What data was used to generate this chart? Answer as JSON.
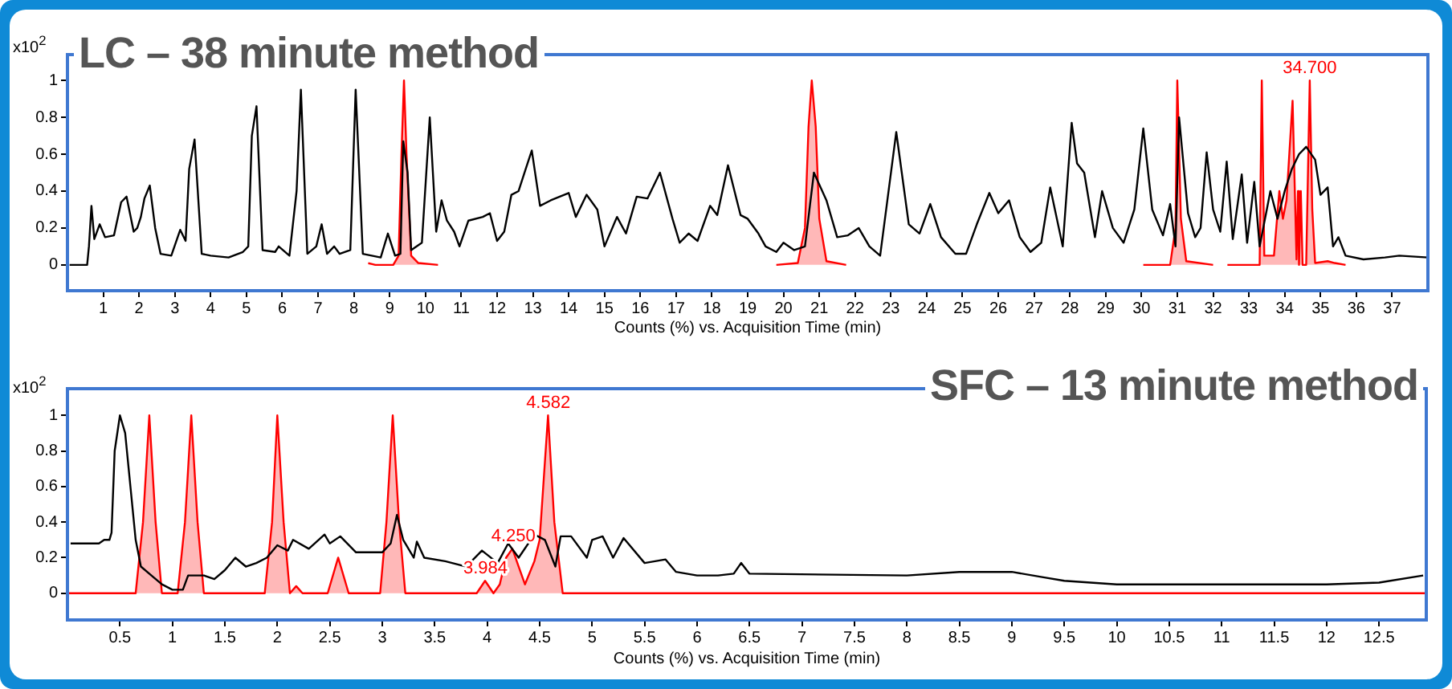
{
  "chart_data": [
    {
      "type": "line",
      "title": "LC – 38 minute method",
      "xlabel": "Counts (%) vs. Acquisition Time (min)",
      "ylabel": "x10$^{2}$",
      "xlim": [
        0,
        38
      ],
      "xticks": [
        1,
        2,
        3,
        4,
        5,
        6,
        7,
        8,
        9,
        10,
        11,
        12,
        13,
        14,
        15,
        16,
        17,
        18,
        19,
        20,
        21,
        22,
        23,
        24,
        25,
        26,
        27,
        28,
        29,
        30,
        31,
        32,
        33,
        34,
        35,
        36,
        37
      ],
      "ylim": [
        -0.14,
        1.14
      ],
      "yticks": [
        0,
        0.2,
        0.4,
        0.6,
        0.8,
        1
      ],
      "legend": false,
      "marker": "none",
      "series": [
        {
          "type": "line",
          "color": "#000000",
          "x": [
            0.06,
            0.55,
            0.6,
            0.67,
            0.75,
            0.9,
            1.05,
            1.3,
            1.5,
            1.65,
            1.85,
            1.95,
            2.05,
            2.15,
            2.3,
            2.45,
            2.6,
            2.9,
            3.15,
            3.3,
            3.4,
            3.55,
            3.75,
            4.0,
            4.5,
            4.9,
            5.05,
            5.15,
            5.28,
            5.45,
            5.8,
            5.9,
            6.2,
            6.4,
            6.52,
            6.7,
            6.95,
            7.1,
            7.25,
            7.45,
            7.6,
            7.9,
            8.05,
            8.25,
            8.5,
            8.75,
            8.95,
            9.15,
            9.3,
            9.38,
            9.5,
            9.6,
            9.9,
            10.12,
            10.3,
            10.45,
            10.6,
            10.8,
            10.95,
            11.2,
            11.6,
            11.8,
            12.0,
            12.2,
            12.4,
            12.6,
            12.8,
            12.97,
            13.2,
            13.5,
            14.0,
            14.2,
            14.5,
            14.8,
            15.0,
            15.35,
            15.6,
            15.9,
            16.2,
            16.55,
            16.9,
            17.1,
            17.35,
            17.6,
            17.95,
            18.15,
            18.45,
            18.8,
            19.0,
            19.3,
            19.5,
            19.8,
            20.0,
            20.3,
            20.6,
            20.85,
            21.2,
            21.5,
            21.8,
            22.1,
            22.4,
            22.7,
            23.15,
            23.5,
            23.8,
            24.1,
            24.4,
            24.8,
            25.1,
            25.4,
            25.75,
            26.0,
            26.3,
            26.6,
            26.9,
            27.2,
            27.45,
            27.8,
            28.05,
            28.2,
            28.4,
            28.7,
            28.9,
            29.2,
            29.5,
            29.8,
            30.05,
            30.3,
            30.6,
            30.8,
            30.95,
            31.05,
            31.3,
            31.5,
            31.65,
            31.82,
            32.0,
            32.2,
            32.38,
            32.55,
            32.8,
            32.95,
            33.15,
            33.3,
            33.6,
            33.8,
            34.0,
            34.2,
            34.4,
            34.6,
            34.85,
            35.0,
            35.2,
            35.35,
            35.5,
            35.7,
            36.2,
            36.8,
            37.2,
            38.0
          ],
          "values": [
            0,
            0,
            0.1,
            0.32,
            0.14,
            0.22,
            0.15,
            0.16,
            0.34,
            0.37,
            0.18,
            0.2,
            0.26,
            0.36,
            0.43,
            0.2,
            0.06,
            0.05,
            0.19,
            0.13,
            0.52,
            0.68,
            0.06,
            0.05,
            0.04,
            0.07,
            0.1,
            0.7,
            0.86,
            0.08,
            0.07,
            0.1,
            0.05,
            0.4,
            0.95,
            0.06,
            0.1,
            0.22,
            0.06,
            0.1,
            0.06,
            0.08,
            0.95,
            0.06,
            0.05,
            0.04,
            0.17,
            0.05,
            0.06,
            0.67,
            0.5,
            0.08,
            0.12,
            0.8,
            0.18,
            0.35,
            0.24,
            0.18,
            0.1,
            0.24,
            0.26,
            0.28,
            0.13,
            0.18,
            0.38,
            0.4,
            0.52,
            0.62,
            0.32,
            0.35,
            0.39,
            0.26,
            0.38,
            0.3,
            0.1,
            0.26,
            0.17,
            0.37,
            0.36,
            0.5,
            0.25,
            0.12,
            0.17,
            0.13,
            0.32,
            0.27,
            0.54,
            0.27,
            0.25,
            0.17,
            0.1,
            0.07,
            0.12,
            0.08,
            0.1,
            0.5,
            0.35,
            0.15,
            0.16,
            0.2,
            0.1,
            0.05,
            0.72,
            0.22,
            0.17,
            0.33,
            0.15,
            0.06,
            0.06,
            0.22,
            0.39,
            0.28,
            0.35,
            0.15,
            0.07,
            0.12,
            0.42,
            0.1,
            0.77,
            0.55,
            0.5,
            0.15,
            0.4,
            0.2,
            0.12,
            0.3,
            0.74,
            0.3,
            0.16,
            0.33,
            0.1,
            0.8,
            0.28,
            0.15,
            0.2,
            0.61,
            0.3,
            0.18,
            0.56,
            0.14,
            0.49,
            0.12,
            0.45,
            0.1,
            0.4,
            0.25,
            0.4,
            0.52,
            0.6,
            0.64,
            0.57,
            0.38,
            0.42,
            0.1,
            0.15,
            0.05,
            0.03,
            0.04,
            0.05,
            0.04
          ]
        },
        {
          "type": "area",
          "color": "#ff0000",
          "x": [
            8.4,
            8.6,
            9.1,
            9.25,
            9.33,
            9.4,
            9.47,
            9.6,
            9.8,
            10.35,
            15,
            19.8,
            20.4,
            20.6,
            20.7,
            20.79,
            20.9,
            21.0,
            21.2,
            21.75,
            26,
            30.05,
            30.8,
            30.95,
            31.0,
            31.1,
            31.25,
            32.0,
            32.2,
            32.4,
            33.3,
            33.36,
            33.43,
            33.7,
            33.85,
            33.95,
            34.05,
            34.22,
            34.33,
            34.37,
            34.4,
            34.45,
            34.5,
            34.6,
            34.65,
            34.7,
            34.77,
            34.85,
            35.2,
            35.4,
            35.7
          ],
          "values": [
            0.01,
            0,
            0,
            0.05,
            0.6,
            1,
            0.6,
            0.05,
            0.01,
            0,
            null,
            0,
            0.01,
            0.2,
            0.75,
            1,
            0.75,
            0.25,
            0.02,
            0,
            null,
            0,
            0,
            0.2,
            1,
            0.25,
            0.02,
            0,
            null,
            0,
            0,
            1,
            0.05,
            0.05,
            0.4,
            0.25,
            0.35,
            0.89,
            0.03,
            0.4,
            0,
            0.4,
            0,
            0,
            0.5,
            1,
            0.3,
            0.01,
            0.02,
            0.01,
            0
          ]
        }
      ],
      "annotations": [
        {
          "text": "34.700",
          "x": 34.7,
          "y": 1
        }
      ]
    },
    {
      "type": "line",
      "title": "SFC – 13 minute method",
      "xlabel": "Counts (%) vs. Acquisition Time (min)",
      "ylabel": "x10$^{2}$",
      "xlim": [
        0,
        12.95
      ],
      "xticks": [
        0.5,
        1,
        1.5,
        2,
        2.5,
        3,
        3.5,
        4,
        4.5,
        5,
        5.5,
        6,
        6.5,
        7,
        7.5,
        8,
        8.5,
        9,
        9.5,
        10,
        10.5,
        11,
        11.5,
        12,
        12.5
      ],
      "ylim": [
        -0.15,
        1.15
      ],
      "yticks": [
        0,
        0.2,
        0.4,
        0.6,
        0.8,
        1
      ],
      "legend": false,
      "marker": "none",
      "series": [
        {
          "type": "line",
          "color": "#000000",
          "x": [
            0.03,
            0.3,
            0.35,
            0.4,
            0.42,
            0.45,
            0.5,
            0.55,
            0.6,
            0.65,
            0.7,
            0.8,
            0.9,
            1.0,
            1.1,
            1.15,
            1.3,
            1.4,
            1.5,
            1.6,
            1.7,
            1.8,
            1.9,
            2.0,
            2.1,
            2.15,
            2.3,
            2.45,
            2.5,
            2.6,
            2.75,
            2.9,
            3.0,
            3.08,
            3.14,
            3.2,
            3.3,
            3.33,
            3.4,
            3.6,
            3.8,
            3.95,
            4.1,
            4.2,
            4.3,
            4.45,
            4.55,
            4.65,
            4.7,
            4.8,
            4.95,
            5.0,
            5.1,
            5.2,
            5.3,
            5.5,
            5.7,
            5.8,
            6.0,
            6.2,
            6.35,
            6.42,
            6.5,
            8.0,
            8.5,
            9.0,
            9.3,
            9.5,
            10,
            11,
            12,
            12.5,
            12.92
          ],
          "values": [
            0.28,
            0.28,
            0.3,
            0.3,
            0.34,
            0.8,
            1,
            0.9,
            0.6,
            0.3,
            0.15,
            0.1,
            0.05,
            0.02,
            0.02,
            0.1,
            0.1,
            0.08,
            0.13,
            0.2,
            0.15,
            0.17,
            0.2,
            0.27,
            0.24,
            0.3,
            0.25,
            0.33,
            0.28,
            0.32,
            0.23,
            0.23,
            0.23,
            0.28,
            0.44,
            0.3,
            0.2,
            0.29,
            0.2,
            0.18,
            0.15,
            0.24,
            0.17,
            0.28,
            0.2,
            0.33,
            0.3,
            0.15,
            0.32,
            0.32,
            0.2,
            0.3,
            0.32,
            0.2,
            0.31,
            0.17,
            0.19,
            0.12,
            0.1,
            0.1,
            0.11,
            0.17,
            0.11,
            0.1,
            0.12,
            0.12,
            0.09,
            0.07,
            0.05,
            0.05,
            0.05,
            0.06,
            0.1
          ]
        },
        {
          "type": "area",
          "color": "#ff0000",
          "x": [
            0,
            0.65,
            0.72,
            0.78,
            0.84,
            0.9,
            1.05,
            1.12,
            1.18,
            1.24,
            1.3,
            1.88,
            1.95,
            2.0,
            2.06,
            2.12,
            2.18,
            2.24,
            2.48,
            2.58,
            2.68,
            2.98,
            3.04,
            3.1,
            3.16,
            3.22,
            3.9,
            3.98,
            4.06,
            4.12,
            4.18,
            4.24,
            4.3,
            4.36,
            4.45,
            4.5,
            4.58,
            4.64,
            4.72,
            12.95
          ],
          "values": [
            0,
            0,
            0.4,
            1,
            0.4,
            0,
            0,
            0.4,
            1,
            0.4,
            0,
            0,
            0.4,
            1,
            0.4,
            0,
            0.04,
            0,
            0,
            0.2,
            0,
            0,
            0.4,
            1,
            0.4,
            0,
            0,
            0.07,
            0,
            0.05,
            0.2,
            0.25,
            0.15,
            0.05,
            0.18,
            0.3,
            1,
            0.4,
            0,
            0
          ]
        }
      ],
      "annotations": [
        {
          "text": "3.984",
          "x": 3.984,
          "y": 0.07
        },
        {
          "text": "4.250",
          "x": 4.25,
          "y": 0.25
        },
        {
          "text": "4.582",
          "x": 4.582,
          "y": 1
        }
      ]
    }
  ]
}
